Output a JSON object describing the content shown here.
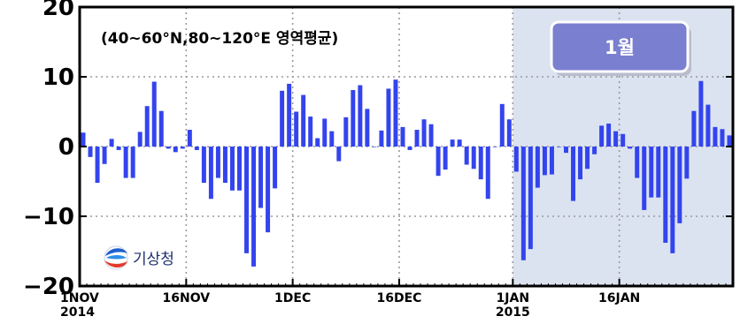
{
  "chart_data": {
    "type": "bar",
    "title": "(40~60°N,80~120°E 영역평균)",
    "highlight_label": "1월",
    "logo_text": "기상청",
    "ylim": [
      -20,
      20
    ],
    "yticks": [
      {
        "value": 20,
        "label": "20"
      },
      {
        "value": 10,
        "label": "10"
      },
      {
        "value": 0,
        "label": "0"
      },
      {
        "value": -10,
        "label": "−10"
      },
      {
        "value": -20,
        "label": "−20"
      }
    ],
    "xticks": [
      {
        "day": 0,
        "label": "1NOV",
        "sublabel": "2014"
      },
      {
        "day": 15,
        "label": "16NOV",
        "sublabel": ""
      },
      {
        "day": 30,
        "label": "1DEC",
        "sublabel": ""
      },
      {
        "day": 45,
        "label": "16DEC",
        "sublabel": ""
      },
      {
        "day": 61,
        "label": "1JAN",
        "sublabel": "2015"
      },
      {
        "day": 76,
        "label": "16JAN",
        "sublabel": ""
      }
    ],
    "highlight_start_day": 61,
    "x_range_days": [
      0,
      92
    ],
    "grid": true,
    "colors": {
      "bar": "#3344ee",
      "highlight": "#dbe3f0",
      "grid": "#9a9a9a",
      "badge": "#7b7fd0"
    },
    "dates": [
      "2014-11-01",
      "2014-11-02",
      "2014-11-03",
      "2014-11-04",
      "2014-11-05",
      "2014-11-06",
      "2014-11-07",
      "2014-11-08",
      "2014-11-09",
      "2014-11-10",
      "2014-11-11",
      "2014-11-12",
      "2014-11-13",
      "2014-11-14",
      "2014-11-15",
      "2014-11-16",
      "2014-11-17",
      "2014-11-18",
      "2014-11-19",
      "2014-11-20",
      "2014-11-21",
      "2014-11-22",
      "2014-11-23",
      "2014-11-24",
      "2014-11-25",
      "2014-11-26",
      "2014-11-27",
      "2014-11-28",
      "2014-11-29",
      "2014-11-30",
      "2014-12-01",
      "2014-12-02",
      "2014-12-03",
      "2014-12-04",
      "2014-12-05",
      "2014-12-06",
      "2014-12-07",
      "2014-12-08",
      "2014-12-09",
      "2014-12-10",
      "2014-12-11",
      "2014-12-12",
      "2014-12-13",
      "2014-12-14",
      "2014-12-15",
      "2014-12-16",
      "2014-12-17",
      "2014-12-18",
      "2014-12-19",
      "2014-12-20",
      "2014-12-21",
      "2014-12-22",
      "2014-12-23",
      "2014-12-24",
      "2014-12-25",
      "2014-12-26",
      "2014-12-27",
      "2014-12-28",
      "2014-12-29",
      "2014-12-30",
      "2014-12-31",
      "2015-01-01",
      "2015-01-02",
      "2015-01-03",
      "2015-01-04",
      "2015-01-05",
      "2015-01-06",
      "2015-01-07",
      "2015-01-08",
      "2015-01-09",
      "2015-01-10",
      "2015-01-11",
      "2015-01-12",
      "2015-01-13",
      "2015-01-14",
      "2015-01-15",
      "2015-01-16",
      "2015-01-17",
      "2015-01-18",
      "2015-01-19",
      "2015-01-20",
      "2015-01-21",
      "2015-01-22",
      "2015-01-23",
      "2015-01-24",
      "2015-01-25",
      "2015-01-26",
      "2015-01-27",
      "2015-01-28",
      "2015-01-29",
      "2015-01-30",
      "2015-01-31"
    ],
    "values": [
      2.0,
      -1.5,
      -5.2,
      -2.5,
      1.1,
      -0.5,
      -4.5,
      -4.5,
      2.1,
      5.8,
      9.3,
      5.1,
      -0.3,
      -0.8,
      -0.3,
      2.4,
      -0.5,
      -5.2,
      -7.5,
      -4.5,
      -5.2,
      -6.3,
      -6.3,
      -15.3,
      -17.2,
      -8.8,
      -12.3,
      -6.0,
      8.0,
      9.0,
      5.0,
      7.4,
      4.3,
      1.2,
      4.0,
      2.2,
      -2.1,
      4.2,
      8.1,
      8.8,
      5.4,
      0.0,
      2.3,
      8.3,
      9.6,
      2.8,
      -0.5,
      2.4,
      3.9,
      3.2,
      -4.2,
      -3.3,
      1.0,
      1.0,
      -2.6,
      -3.2,
      -4.7,
      -7.5,
      0.0,
      6.1,
      3.9,
      -3.6,
      -16.3,
      -14.7,
      -5.9,
      -4.1,
      -4.0,
      0.0,
      -0.9,
      -7.8,
      -4.7,
      -3.2,
      -1.1,
      3.0,
      3.3,
      2.2,
      1.8,
      -0.3,
      -4.5,
      -9.1,
      -7.3,
      -7.3,
      -13.8,
      -15.3,
      -11.0,
      -4.6,
      5.1,
      9.4,
      6.0,
      2.8,
      2.5,
      1.6
    ]
  }
}
